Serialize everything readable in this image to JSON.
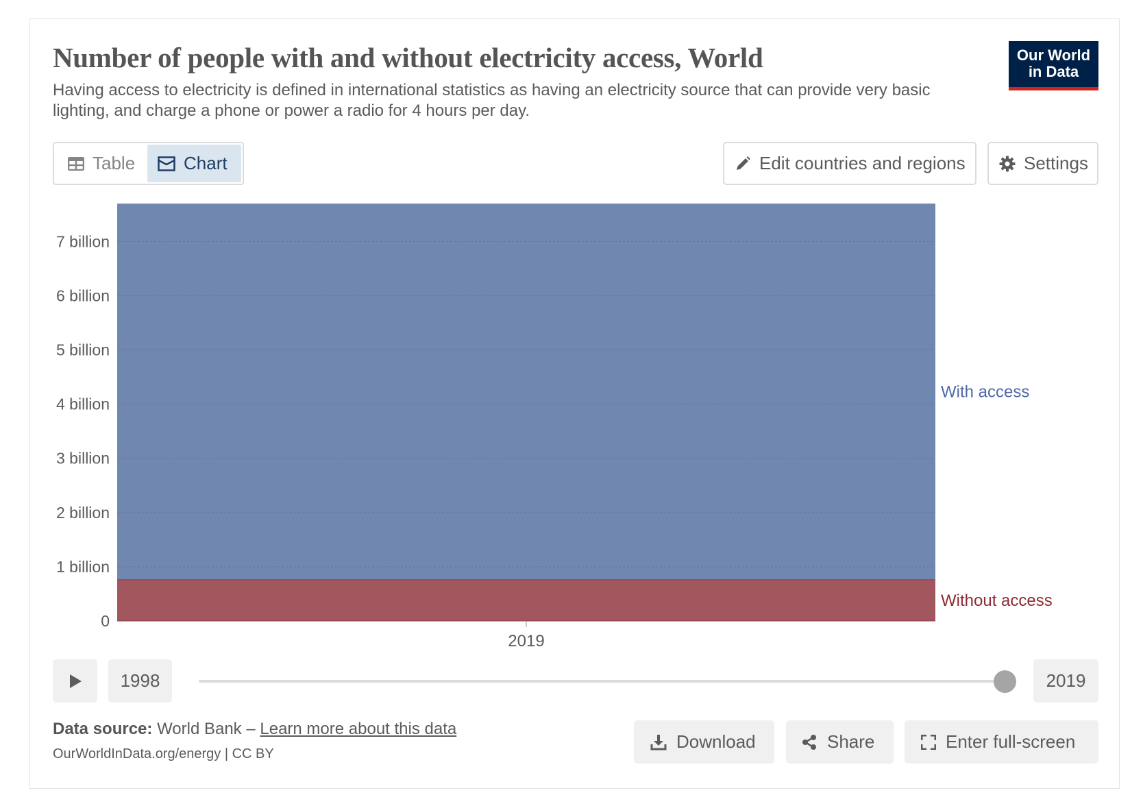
{
  "header": {
    "title": "Number of people with and without electricity access, World",
    "subtitle": "Having access to electricity is defined in international statistics as having an electricity source that can provide very basic lighting, and charge a phone or power a radio for 4 hours per day.",
    "logo_line1": "Our World",
    "logo_line2": "in Data"
  },
  "tabs": [
    {
      "label": "Table",
      "icon": "table-icon",
      "active": false
    },
    {
      "label": "Chart",
      "icon": "chart-icon",
      "active": true
    }
  ],
  "controls": {
    "edit_label": "Edit countries and regions",
    "settings_label": "Settings"
  },
  "chart_data": {
    "type": "area",
    "stacked": true,
    "title": "Number of people with and without electricity access, World",
    "x": [
      2019
    ],
    "xlabel": "",
    "ylabel": "",
    "ylim": [
      0,
      7700000000
    ],
    "yticks": [
      0,
      1000000000,
      2000000000,
      3000000000,
      4000000000,
      5000000000,
      6000000000,
      7000000000
    ],
    "ytick_labels": [
      "0",
      "1 billion",
      "2 billion",
      "3 billion",
      "4 billion",
      "5 billion",
      "6 billion",
      "7 billion"
    ],
    "xtick_labels": [
      "2019"
    ],
    "grid": true,
    "series": [
      {
        "name": "Without access",
        "values": [
          760000000
        ],
        "color": "#a2575f"
      },
      {
        "name": "With access",
        "values": [
          6940000000
        ],
        "color": "#7087b0"
      }
    ],
    "label_colors": {
      "Without access": "#8c2b33",
      "With access": "#4d6aa5"
    }
  },
  "timeline": {
    "start_year": "1998",
    "end_year": "2019",
    "position": 1.0
  },
  "footer": {
    "source_label": "Data source:",
    "source_value": "World Bank",
    "separator": "–",
    "learn_more": "Learn more about this data",
    "license": "OurWorldInData.org/energy | CC BY",
    "download_label": "Download",
    "share_label": "Share",
    "fullscreen_label": "Enter full-screen"
  }
}
